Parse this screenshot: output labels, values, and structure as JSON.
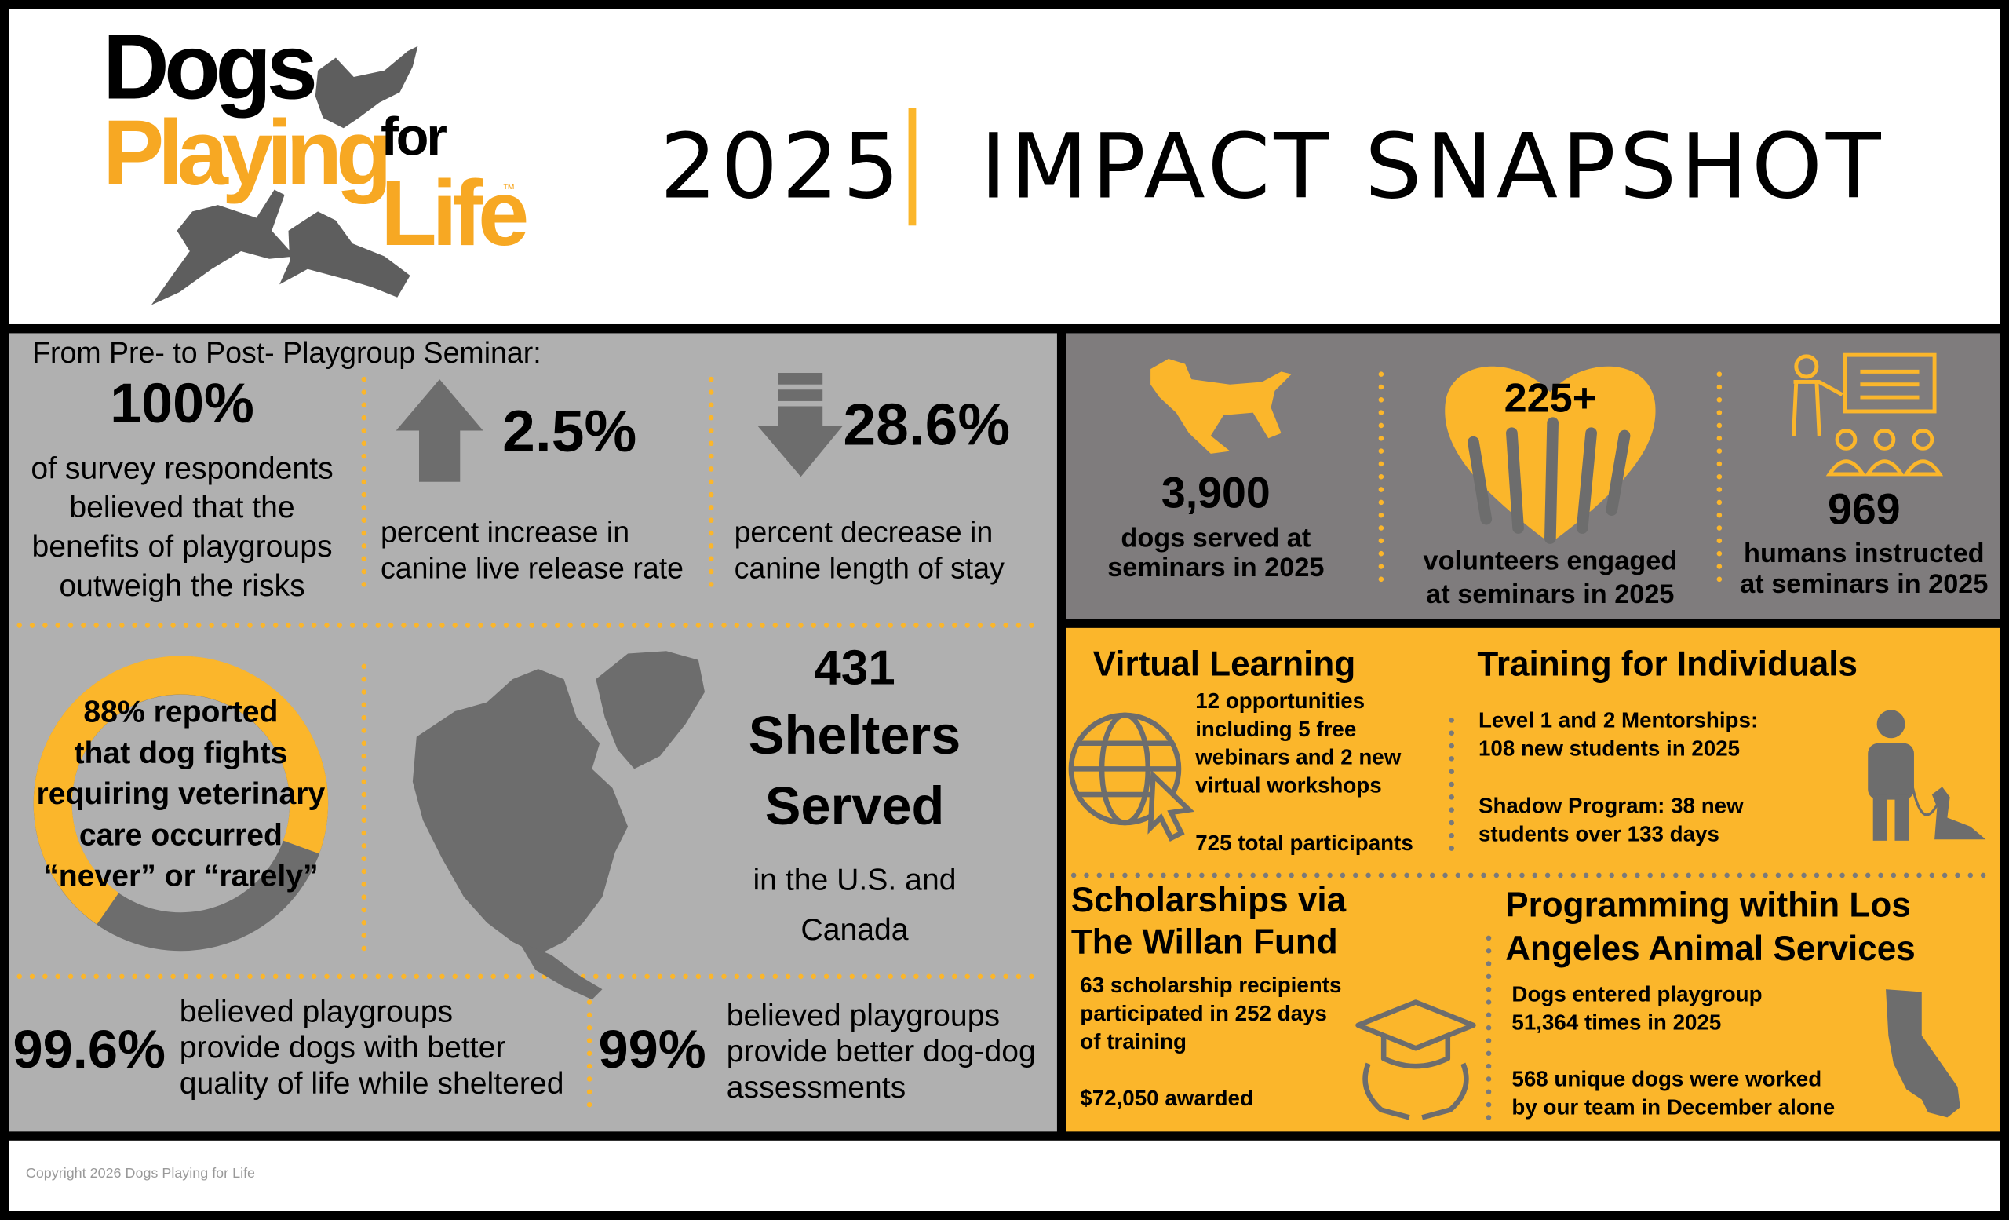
{
  "header": {
    "logo": {
      "dogs": "Dogs",
      "playing": "Playing",
      "for": "for",
      "life": "Life",
      "tm": "™"
    },
    "year": "2025",
    "title": "IMPACT SNAPSHOT"
  },
  "seminar": {
    "heading": "From Pre- to Post- Playgroup Seminar:",
    "stats": [
      {
        "value": "100%",
        "text": [
          "of survey respondents",
          "believed that the",
          "benefits of playgroups",
          "outweigh the risks"
        ]
      },
      {
        "value": "2.5%",
        "text": [
          "percent increase in",
          "canine live release rate"
        ]
      },
      {
        "value": "28.6%",
        "text": [
          "percent decrease in",
          "canine length of stay"
        ]
      }
    ]
  },
  "fights": {
    "text": [
      "88% reported",
      "that dog fights",
      "requiring veterinary",
      "care occurred",
      "“never” or “rarely”"
    ]
  },
  "shelters": {
    "value": "431",
    "label": [
      "Shelters",
      "Served"
    ],
    "text": [
      "in the U.S. and",
      "Canada"
    ]
  },
  "beliefs": [
    {
      "value": "99.6%",
      "text": [
        "believed playgroups",
        "provide dogs with better",
        "quality of life while sheltered"
      ]
    },
    {
      "value": "99%",
      "text": [
        "believed playgroups",
        "provide better dog-dog",
        "assessments"
      ]
    }
  ],
  "reach": [
    {
      "value": "3,900",
      "text": [
        "dogs served at",
        "seminars in 2025"
      ]
    },
    {
      "value": "225+",
      "text": [
        "volunteers engaged",
        "at seminars in 2025"
      ]
    },
    {
      "value": "969",
      "text": [
        "humans instructed",
        "at seminars in 2025"
      ]
    }
  ],
  "programs": {
    "virtual": {
      "title": "Virtual Learning",
      "details": [
        "12 opportunities",
        "including 5 free",
        "webinars and 2 new",
        "virtual workshops"
      ],
      "total": "725 total participants"
    },
    "training": {
      "title": "Training for Individuals",
      "items": [
        [
          "Level 1 and 2 Mentorships:",
          "108 new students in 2025"
        ],
        [
          "Shadow Program: 38 new",
          "students over 133 days"
        ]
      ]
    },
    "scholarships": {
      "title": [
        "Scholarships via",
        "The Willan Fund"
      ],
      "details": [
        "63 scholarship recipients",
        "participated in 252 days",
        "of training"
      ],
      "awarded": "$72,050 awarded"
    },
    "los_angeles": {
      "title": [
        "Programming within Los",
        "Angeles Animal Services"
      ],
      "items": [
        [
          "Dogs entered playgroup",
          "51,364 times in 2025"
        ],
        [
          "568 unique dogs were worked",
          "by our team in December alone"
        ]
      ]
    }
  },
  "footer": {
    "copyright": "Copyright 2026 Dogs Playing for Life"
  }
}
